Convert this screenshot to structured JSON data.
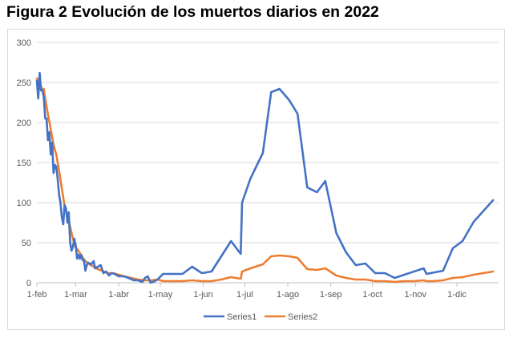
{
  "title": "Figura 2 Evolución de los muertos diarios en 2022",
  "chart_data": {
    "type": "line",
    "title": "Figura 2 Evolución de los muertos diarios en 2022",
    "xlabel": "",
    "ylabel": "",
    "ylim": [
      0,
      300
    ],
    "xlim": [
      "2022-02-01",
      "2022-12-31"
    ],
    "y_ticks": [
      0,
      50,
      100,
      150,
      200,
      250,
      300
    ],
    "x_ticks": [
      {
        "date": "2022-02-01",
        "label": "1-feb"
      },
      {
        "date": "2022-03-01",
        "label": "1-mar"
      },
      {
        "date": "2022-04-01",
        "label": "1-abr"
      },
      {
        "date": "2022-05-01",
        "label": "1-may"
      },
      {
        "date": "2022-06-01",
        "label": "1-jun"
      },
      {
        "date": "2022-07-01",
        "label": "1-jul"
      },
      {
        "date": "2022-08-01",
        "label": "1-ago"
      },
      {
        "date": "2022-09-01",
        "label": "1-sep"
      },
      {
        "date": "2022-10-01",
        "label": "1-oct"
      },
      {
        "date": "2022-11-01",
        "label": "1-nov"
      },
      {
        "date": "2022-12-01",
        "label": "1-dic"
      }
    ],
    "grid": "horizontal",
    "legend": "bottom",
    "series": [
      {
        "name": "Series1",
        "color": "#4472c4",
        "points": [
          [
            "2022-02-01",
            252
          ],
          [
            "2022-02-02",
            230
          ],
          [
            "2022-02-03",
            262
          ],
          [
            "2022-02-04",
            240
          ],
          [
            "2022-02-05",
            240
          ],
          [
            "2022-02-06",
            232
          ],
          [
            "2022-02-07",
            205
          ],
          [
            "2022-02-08",
            205
          ],
          [
            "2022-02-09",
            178
          ],
          [
            "2022-02-10",
            188
          ],
          [
            "2022-02-11",
            160
          ],
          [
            "2022-02-12",
            175
          ],
          [
            "2022-02-13",
            137
          ],
          [
            "2022-02-14",
            147
          ],
          [
            "2022-02-15",
            145
          ],
          [
            "2022-02-16",
            130
          ],
          [
            "2022-02-17",
            110
          ],
          [
            "2022-02-18",
            100
          ],
          [
            "2022-02-19",
            82
          ],
          [
            "2022-02-20",
            73
          ],
          [
            "2022-02-21",
            97
          ],
          [
            "2022-02-22",
            93
          ],
          [
            "2022-02-23",
            75
          ],
          [
            "2022-02-24",
            88
          ],
          [
            "2022-02-25",
            50
          ],
          [
            "2022-02-26",
            40
          ],
          [
            "2022-02-27",
            45
          ],
          [
            "2022-02-28",
            55
          ],
          [
            "2022-03-01",
            47
          ],
          [
            "2022-03-02",
            30
          ],
          [
            "2022-03-03",
            35
          ],
          [
            "2022-03-04",
            30
          ],
          [
            "2022-03-05",
            35
          ],
          [
            "2022-03-06",
            28
          ],
          [
            "2022-03-07",
            28
          ],
          [
            "2022-03-08",
            15
          ],
          [
            "2022-03-09",
            22
          ],
          [
            "2022-03-10",
            25
          ],
          [
            "2022-03-12",
            23
          ],
          [
            "2022-03-14",
            27
          ],
          [
            "2022-03-15",
            18
          ],
          [
            "2022-03-17",
            20
          ],
          [
            "2022-03-19",
            22
          ],
          [
            "2022-03-21",
            12
          ],
          [
            "2022-03-23",
            14
          ],
          [
            "2022-03-25",
            9
          ],
          [
            "2022-03-27",
            12
          ],
          [
            "2022-03-29",
            11
          ],
          [
            "2022-04-01",
            8
          ],
          [
            "2022-04-05",
            8
          ],
          [
            "2022-04-08",
            6
          ],
          [
            "2022-04-12",
            3
          ],
          [
            "2022-04-15",
            3
          ],
          [
            "2022-04-18",
            1
          ],
          [
            "2022-04-20",
            6
          ],
          [
            "2022-04-22",
            8
          ],
          [
            "2022-04-24",
            0
          ],
          [
            "2022-04-26",
            1
          ],
          [
            "2022-04-29",
            4
          ],
          [
            "2022-05-03",
            11
          ],
          [
            "2022-05-10",
            11
          ],
          [
            "2022-05-17",
            11
          ],
          [
            "2022-05-24",
            20
          ],
          [
            "2022-05-31",
            12
          ],
          [
            "2022-06-07",
            14
          ],
          [
            "2022-06-21",
            52
          ],
          [
            "2022-06-28",
            36
          ],
          [
            "2022-06-29",
            100
          ],
          [
            "2022-07-05",
            130
          ],
          [
            "2022-07-14",
            162
          ],
          [
            "2022-07-20",
            238
          ],
          [
            "2022-07-26",
            242
          ],
          [
            "2022-08-02",
            228
          ],
          [
            "2022-08-08",
            211
          ],
          [
            "2022-08-15",
            119
          ],
          [
            "2022-08-22",
            113
          ],
          [
            "2022-08-28",
            127
          ],
          [
            "2022-09-05",
            62
          ],
          [
            "2022-09-12",
            38
          ],
          [
            "2022-09-19",
            22
          ],
          [
            "2022-09-26",
            24
          ],
          [
            "2022-10-03",
            12
          ],
          [
            "2022-10-10",
            12
          ],
          [
            "2022-10-17",
            6
          ],
          [
            "2022-11-07",
            18
          ],
          [
            "2022-11-09",
            11
          ],
          [
            "2022-11-21",
            15
          ],
          [
            "2022-11-28",
            43
          ],
          [
            "2022-12-05",
            52
          ],
          [
            "2022-12-13",
            76
          ],
          [
            "2022-12-27",
            103
          ]
        ]
      },
      {
        "name": "Series2",
        "color": "#ed7d31",
        "points": [
          [
            "2022-02-01",
            255
          ],
          [
            "2022-02-02",
            252
          ],
          [
            "2022-02-03",
            248
          ],
          [
            "2022-02-04",
            245
          ],
          [
            "2022-02-05",
            240
          ],
          [
            "2022-02-06",
            242
          ],
          [
            "2022-02-07",
            230
          ],
          [
            "2022-02-09",
            210
          ],
          [
            "2022-02-11",
            192
          ],
          [
            "2022-02-13",
            172
          ],
          [
            "2022-02-15",
            160
          ],
          [
            "2022-02-17",
            140
          ],
          [
            "2022-02-19",
            118
          ],
          [
            "2022-02-21",
            96
          ],
          [
            "2022-02-23",
            83
          ],
          [
            "2022-02-25",
            70
          ],
          [
            "2022-02-27",
            55
          ],
          [
            "2022-03-01",
            44
          ],
          [
            "2022-03-03",
            40
          ],
          [
            "2022-03-05",
            34
          ],
          [
            "2022-03-08",
            27
          ],
          [
            "2022-03-11",
            23
          ],
          [
            "2022-03-14",
            20
          ],
          [
            "2022-03-17",
            17
          ],
          [
            "2022-03-20",
            15
          ],
          [
            "2022-03-24",
            12
          ],
          [
            "2022-03-28",
            12
          ],
          [
            "2022-04-01",
            10
          ],
          [
            "2022-04-05",
            8
          ],
          [
            "2022-04-10",
            6
          ],
          [
            "2022-04-15",
            4
          ],
          [
            "2022-04-20",
            3
          ],
          [
            "2022-04-25",
            3
          ],
          [
            "2022-04-29",
            4
          ],
          [
            "2022-05-03",
            2
          ],
          [
            "2022-05-10",
            2
          ],
          [
            "2022-05-17",
            2
          ],
          [
            "2022-05-24",
            3
          ],
          [
            "2022-05-31",
            2
          ],
          [
            "2022-06-07",
            2
          ],
          [
            "2022-06-14",
            4
          ],
          [
            "2022-06-21",
            7
          ],
          [
            "2022-06-28",
            5
          ],
          [
            "2022-06-29",
            14
          ],
          [
            "2022-07-05",
            18
          ],
          [
            "2022-07-14",
            23
          ],
          [
            "2022-07-20",
            33
          ],
          [
            "2022-07-26",
            34
          ],
          [
            "2022-08-02",
            33
          ],
          [
            "2022-08-08",
            31
          ],
          [
            "2022-08-15",
            17
          ],
          [
            "2022-08-22",
            16
          ],
          [
            "2022-08-28",
            18
          ],
          [
            "2022-09-05",
            9
          ],
          [
            "2022-09-12",
            6
          ],
          [
            "2022-09-19",
            4
          ],
          [
            "2022-09-26",
            4
          ],
          [
            "2022-10-03",
            2
          ],
          [
            "2022-10-10",
            2
          ],
          [
            "2022-10-17",
            1
          ],
          [
            "2022-10-24",
            2
          ],
          [
            "2022-10-31",
            2
          ],
          [
            "2022-11-07",
            3
          ],
          [
            "2022-11-09",
            2
          ],
          [
            "2022-11-14",
            2
          ],
          [
            "2022-11-21",
            3
          ],
          [
            "2022-11-28",
            6
          ],
          [
            "2022-12-05",
            7
          ],
          [
            "2022-12-13",
            10
          ],
          [
            "2022-12-20",
            12
          ],
          [
            "2022-12-27",
            14
          ]
        ]
      }
    ]
  }
}
